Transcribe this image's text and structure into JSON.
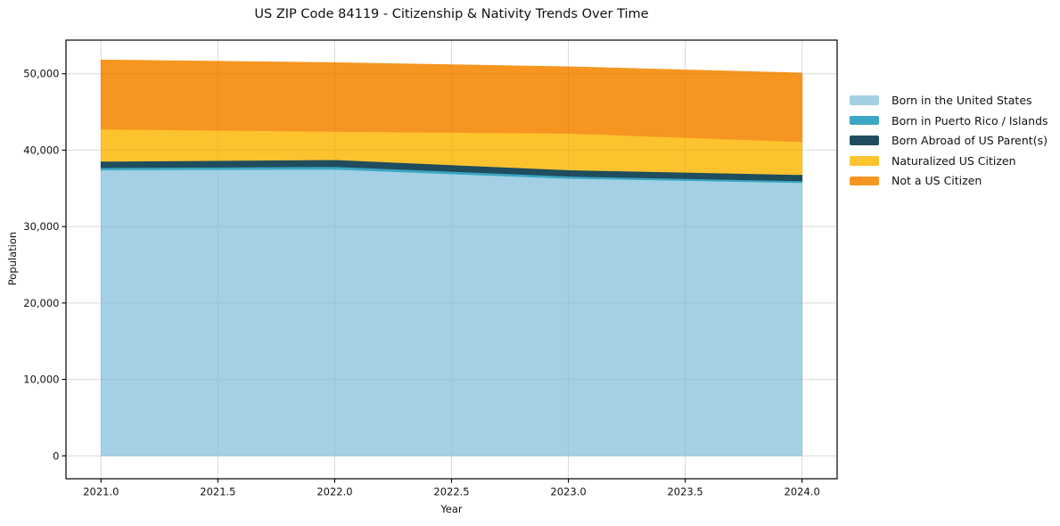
{
  "chart_data": {
    "type": "area",
    "stacked": true,
    "title": "US ZIP Code 84119 - Citizenship & Nativity Trends Over Time",
    "xlabel": "Year",
    "ylabel": "Population",
    "x": [
      2021,
      2022,
      2023,
      2024
    ],
    "series": [
      {
        "name": "Born in the United States",
        "color": "#a3d0e4",
        "values": [
          37400,
          37500,
          36300,
          35750
        ]
      },
      {
        "name": "Born in Puerto Rico / Islands",
        "color": "#3ba7c4",
        "values": [
          300,
          350,
          290,
          230
        ]
      },
      {
        "name": "Born Abroad of US Parent(s)",
        "color": "#204d5d",
        "values": [
          850,
          900,
          820,
          820
        ]
      },
      {
        "name": "Naturalized US Citizen",
        "color": "#fdc32f",
        "values": [
          4200,
          3700,
          4800,
          4300
        ]
      },
      {
        "name": "Not a US Citizen",
        "color": "#f79521",
        "values": [
          9050,
          9000,
          8700,
          9000
        ]
      }
    ],
    "totals": [
      51800,
      51450,
      50910,
      50100
    ],
    "xlim": [
      2020.85,
      2024.15
    ],
    "ylim": [
      -3000,
      54400
    ],
    "xticks": {
      "values": [
        2021.0,
        2021.5,
        2022.0,
        2022.5,
        2023.0,
        2023.5,
        2024.0
      ],
      "labels": [
        "2021.0",
        "2021.5",
        "2022.0",
        "2022.5",
        "2023.0",
        "2023.5",
        "2024.0"
      ]
    },
    "yticks": {
      "values": [
        0,
        10000,
        20000,
        30000,
        40000,
        50000
      ],
      "labels": [
        "0",
        "10,000",
        "20,000",
        "30,000",
        "40,000",
        "50,000"
      ]
    },
    "grid": true,
    "grid_color": "#e7e7e7",
    "frame_color": "#000000",
    "legend_position": "right-of-plot"
  }
}
